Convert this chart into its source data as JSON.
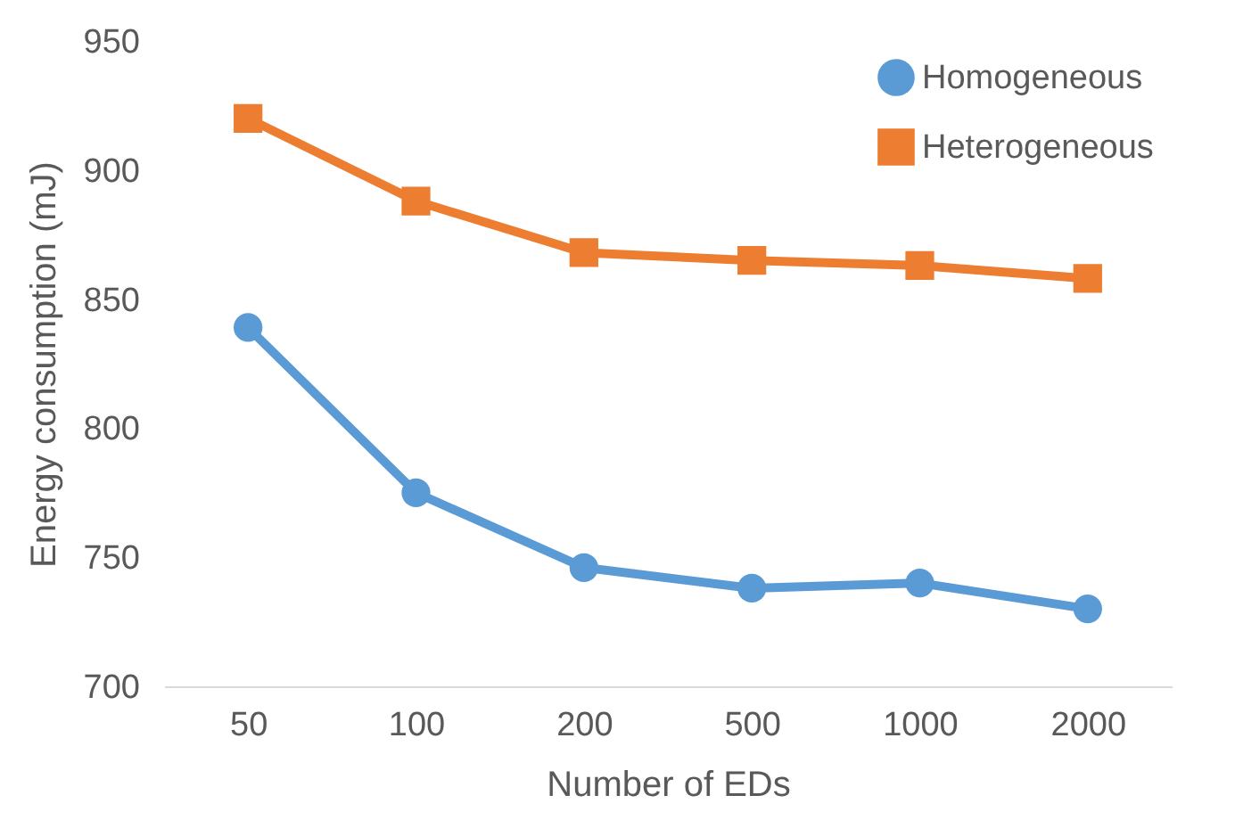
{
  "chart_data": {
    "type": "line",
    "xlabel": "Number of EDs",
    "ylabel": "Energy consumption (mJ)",
    "categories": [
      "50",
      "100",
      "200",
      "500",
      "1000",
      "2000"
    ],
    "series": [
      {
        "name": "Homogeneous",
        "color": "#5b9bd5",
        "marker": "circle",
        "values": [
          839,
          775,
          746,
          738,
          740,
          730
        ]
      },
      {
        "name": "Heterogeneous",
        "color": "#ed7d31",
        "marker": "square",
        "values": [
          920,
          888,
          868,
          865,
          863,
          858
        ]
      }
    ],
    "ylim": [
      700,
      950
    ],
    "yticks": [
      700,
      750,
      800,
      850,
      900,
      950
    ],
    "grid": false,
    "legend": "top right",
    "line_style": "solid"
  }
}
